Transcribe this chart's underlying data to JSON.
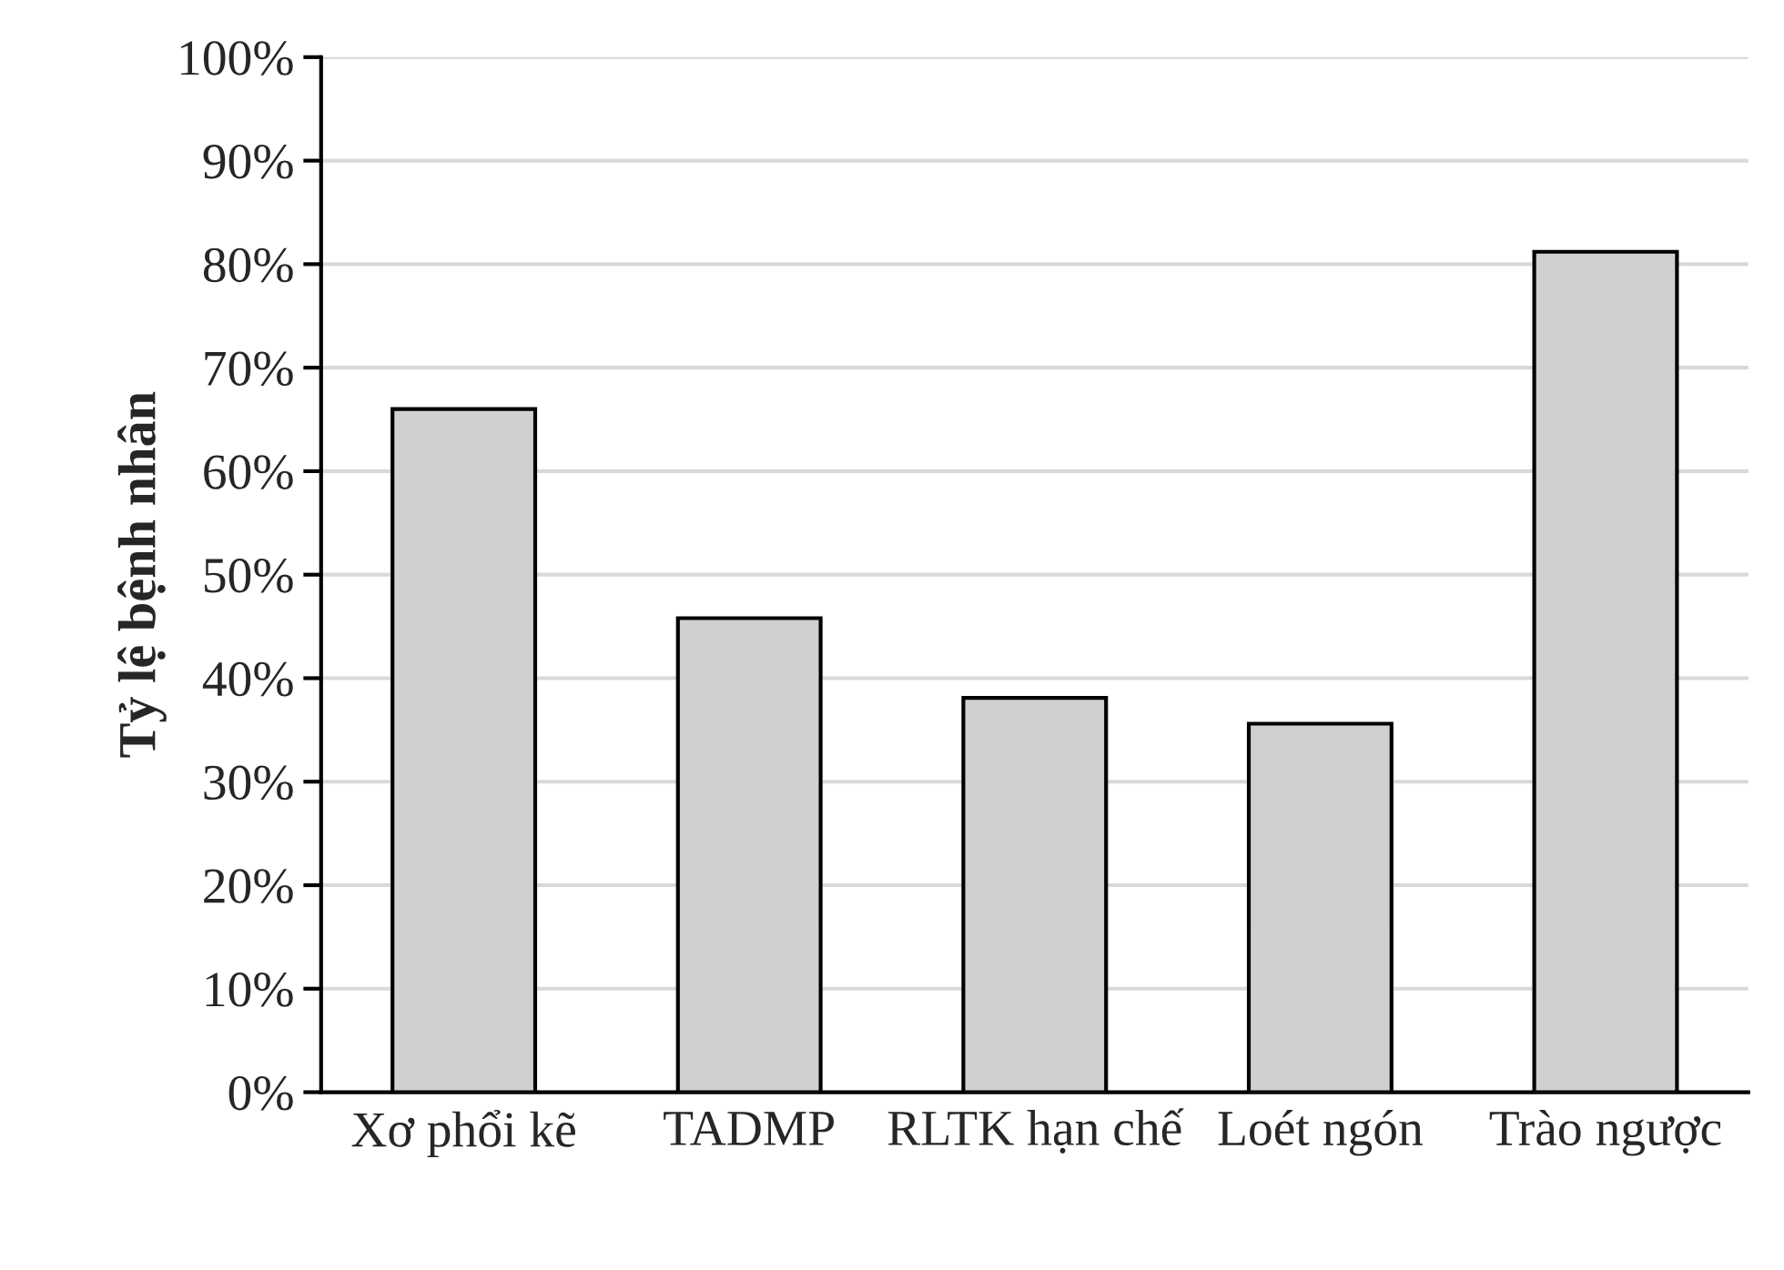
{
  "chart_data": {
    "type": "bar",
    "ylabel": "Tỷ lệ bệnh nhân",
    "categories": [
      "Xơ phổi kẽ",
      "TADMP",
      "RLTK hạn chế",
      "Loét ngón",
      "Trào ngược"
    ],
    "values": [
      66.0,
      45.8,
      38.1,
      35.6,
      81.2
    ],
    "color": "#d0d0d0",
    "ylim": [
      0,
      100
    ],
    "yticks": [
      {
        "value": 0,
        "label": "0%"
      },
      {
        "value": 10,
        "label": "10%"
      },
      {
        "value": 20,
        "label": "20%"
      },
      {
        "value": 30,
        "label": "30%"
      },
      {
        "value": 40,
        "label": "40%"
      },
      {
        "value": 50,
        "label": "50%"
      },
      {
        "value": 60,
        "label": "60%"
      },
      {
        "value": 70,
        "label": "70%"
      },
      {
        "value": 80,
        "label": "80%"
      },
      {
        "value": 90,
        "label": "90%"
      },
      {
        "value": 100,
        "label": "100%"
      }
    ],
    "grid": "y",
    "legend": false
  }
}
